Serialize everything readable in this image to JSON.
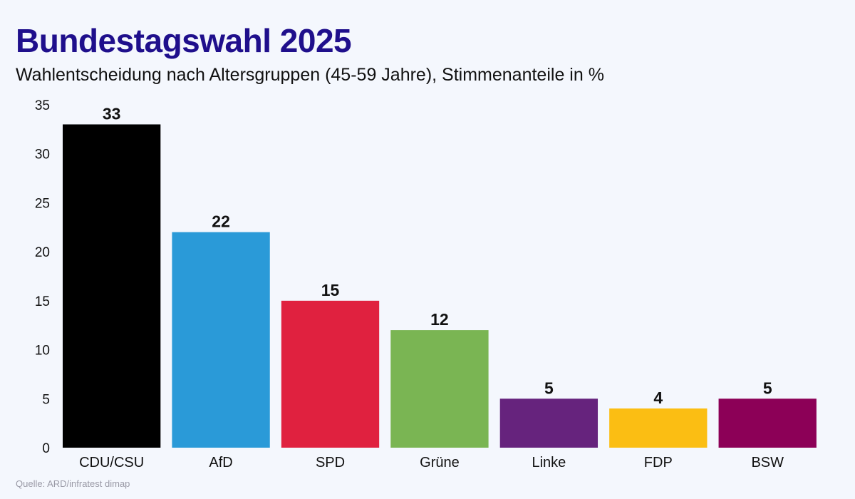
{
  "title": "Bundestagswahl 2025",
  "subtitle": "Wahlentscheidung nach Altersgruppen (45-59 Jahre), Stimmenanteile in %",
  "source": "Quelle: ARD/infratest dimap",
  "chart_data": {
    "type": "bar",
    "title": "Bundestagswahl 2025",
    "subtitle": "Wahlentscheidung nach Altersgruppen (45-59 Jahre), Stimmenanteile in %",
    "xlabel": "",
    "ylabel": "",
    "categories": [
      "CDU/CSU",
      "AfD",
      "SPD",
      "Grüne",
      "Linke",
      "FDP",
      "BSW"
    ],
    "values": [
      33,
      22,
      15,
      12,
      5,
      4,
      5
    ],
    "colors": [
      "#000000",
      "#2a9ad8",
      "#e0213f",
      "#7ab553",
      "#66237d",
      "#fbbe13",
      "#8c0057"
    ],
    "ylim": [
      0,
      35
    ],
    "yticks": [
      0,
      5,
      10,
      15,
      20,
      25,
      30,
      35
    ],
    "grid": false,
    "legend": "none",
    "data_labels": [
      "33",
      "22",
      "15",
      "12",
      "5",
      "4",
      "5"
    ]
  }
}
